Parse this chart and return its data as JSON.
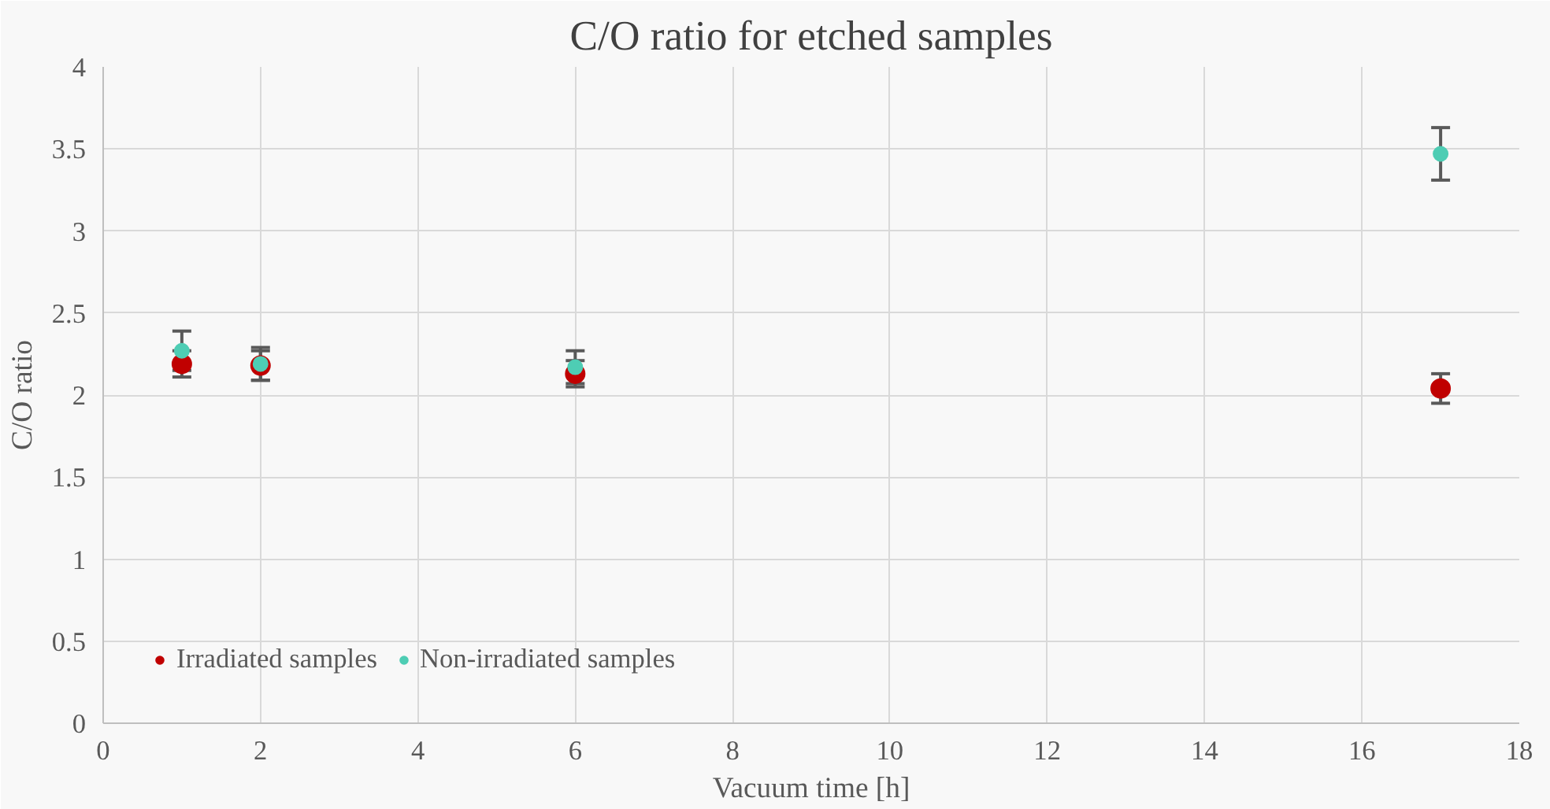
{
  "chart_data": {
    "type": "scatter",
    "title": "C/O ratio for etched samples",
    "xlabel": "Vacuum time [h]",
    "ylabel": "C/O ratio",
    "xlim": [
      0,
      18
    ],
    "xticks": [
      0,
      2,
      4,
      6,
      8,
      10,
      12,
      14,
      16,
      18
    ],
    "ylim": [
      0,
      4
    ],
    "yticks": [
      0,
      0.5,
      1,
      1.5,
      2,
      2.5,
      3,
      3.5,
      4
    ],
    "grid": true,
    "legend": "bottom left",
    "marker": "circle",
    "series": [
      {
        "name": "Irradiated samples",
        "color": "#c00000",
        "x": [
          1,
          2,
          6,
          17
        ],
        "values": [
          2.19,
          2.18,
          2.13,
          2.04
        ],
        "errors": [
          0.08,
          0.09,
          0.08,
          0.09
        ]
      },
      {
        "name": "Non-irradiated samples",
        "color": "#4ecdb4",
        "x": [
          1,
          2,
          6,
          17
        ],
        "values": [
          2.27,
          2.19,
          2.17,
          3.47
        ],
        "errors": [
          0.12,
          0.1,
          0.1,
          0.16
        ]
      }
    ]
  }
}
